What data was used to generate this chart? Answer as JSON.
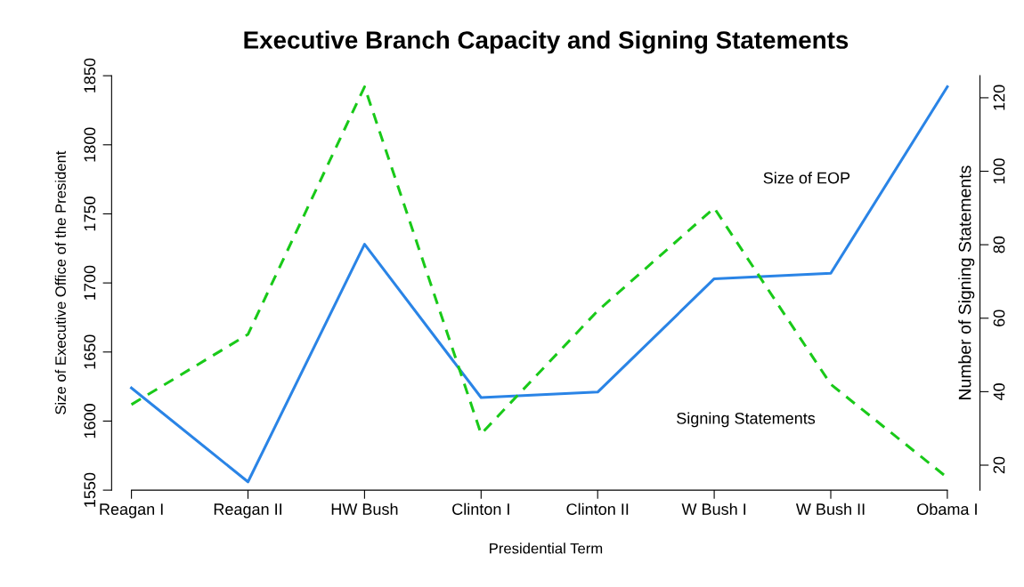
{
  "chart_data": {
    "type": "line",
    "title": "Executive Branch Capacity and Signing Statements",
    "xlabel": "Presidential Term",
    "ylabel": "Size of Executive Office of the President",
    "y2label": "Number of Signing Statements",
    "categories": [
      "Reagan I",
      "Reagan II",
      "HW Bush",
      "Clinton I",
      "Clinton II",
      "W Bush I",
      "W Bush II",
      "Obama I"
    ],
    "series": [
      {
        "name": "Size of EOP",
        "color": "#2a84e6",
        "line_style": "solid",
        "values": [
          1624,
          1556,
          1728,
          1617,
          1621,
          1703,
          1707,
          1842
        ]
      },
      {
        "name": "Signing Statements",
        "color": "#19c919",
        "line_style": "dashed",
        "axis": "y2",
        "values": [
          36.5,
          55.6,
          123,
          28.5,
          62,
          90,
          42,
          16.6
        ]
      }
    ],
    "ylim": [
      1550,
      1850
    ],
    "yticks": [
      1550,
      1600,
      1650,
      1700,
      1750,
      1800,
      1850
    ],
    "y2lim": [
      13.2,
      126
    ],
    "y2ticks": [
      20,
      40,
      60,
      80,
      100,
      120
    ],
    "grid": false,
    "legend": false,
    "marker": "none"
  }
}
